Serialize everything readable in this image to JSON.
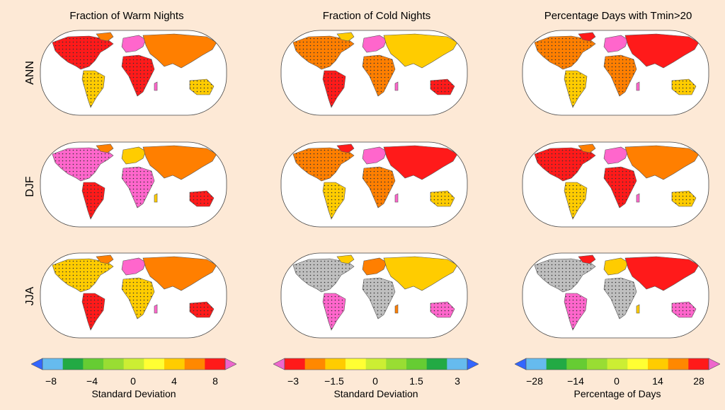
{
  "columns": [
    {
      "title": "Fraction of Warm Nights"
    },
    {
      "title": "Fraction of Cold Nights"
    },
    {
      "title": "Percentage Days with Tmin>20"
    }
  ],
  "rows": [
    {
      "label": "ANN"
    },
    {
      "label": "DJF"
    },
    {
      "label": "JJA"
    }
  ],
  "map_palettes": [
    [
      "#ff1a1a",
      "#ff7f00",
      "#ffcc00",
      "#ff66cc"
    ],
    [
      "#ff7f00",
      "#ffcc00",
      "#ff1a1a",
      "#ff66cc"
    ],
    [
      "#ff7f00",
      "#ff1a1a",
      "#ffcc00",
      "#ff66cc"
    ],
    [
      "#ff66cc",
      "#ff7f00",
      "#ff1a1a",
      "#ffcc00"
    ],
    [
      "#ff7f00",
      "#ff1a1a",
      "#ffcc00",
      "#ff66cc"
    ],
    [
      "#ff1a1a",
      "#ff7f00",
      "#ffcc00",
      "#ff66cc"
    ],
    [
      "#ffcc00",
      "#ff7f00",
      "#ff1a1a",
      "#ff66cc"
    ],
    [
      "#bfbfbf",
      "#ffcc00",
      "#ff66cc",
      "#ff7f00"
    ],
    [
      "#bfbfbf",
      "#ff1a1a",
      "#ff66cc",
      "#ffcc00"
    ]
  ],
  "colorbars": [
    {
      "ticks": [
        "−8",
        "−4",
        "0",
        "4",
        "8"
      ],
      "label": "Standard Deviation",
      "colors": [
        "#3366ff",
        "#66bbee",
        "#22aa44",
        "#66cc33",
        "#99dd33",
        "#ccee33",
        "#ffff33",
        "#ffcc00",
        "#ff8800",
        "#ff1a1a",
        "#ee66cc"
      ]
    },
    {
      "ticks": [
        "−3",
        "−1.5",
        "0",
        "1.5",
        "3"
      ],
      "label": "Standard Deviation",
      "colors": [
        "#ee66cc",
        "#ff1a1a",
        "#ff8800",
        "#ffcc00",
        "#ffff33",
        "#ccee33",
        "#99dd33",
        "#66cc33",
        "#22aa44",
        "#66bbee",
        "#3366ff"
      ]
    },
    {
      "ticks": [
        "−28",
        "−14",
        "0",
        "14",
        "28"
      ],
      "label": "Percentage of Days",
      "colors": [
        "#3366ff",
        "#66bbee",
        "#22aa44",
        "#66cc33",
        "#99dd33",
        "#ccee33",
        "#ffff33",
        "#ffcc00",
        "#ff8800",
        "#ff1a1a",
        "#ee66cc"
      ]
    }
  ]
}
